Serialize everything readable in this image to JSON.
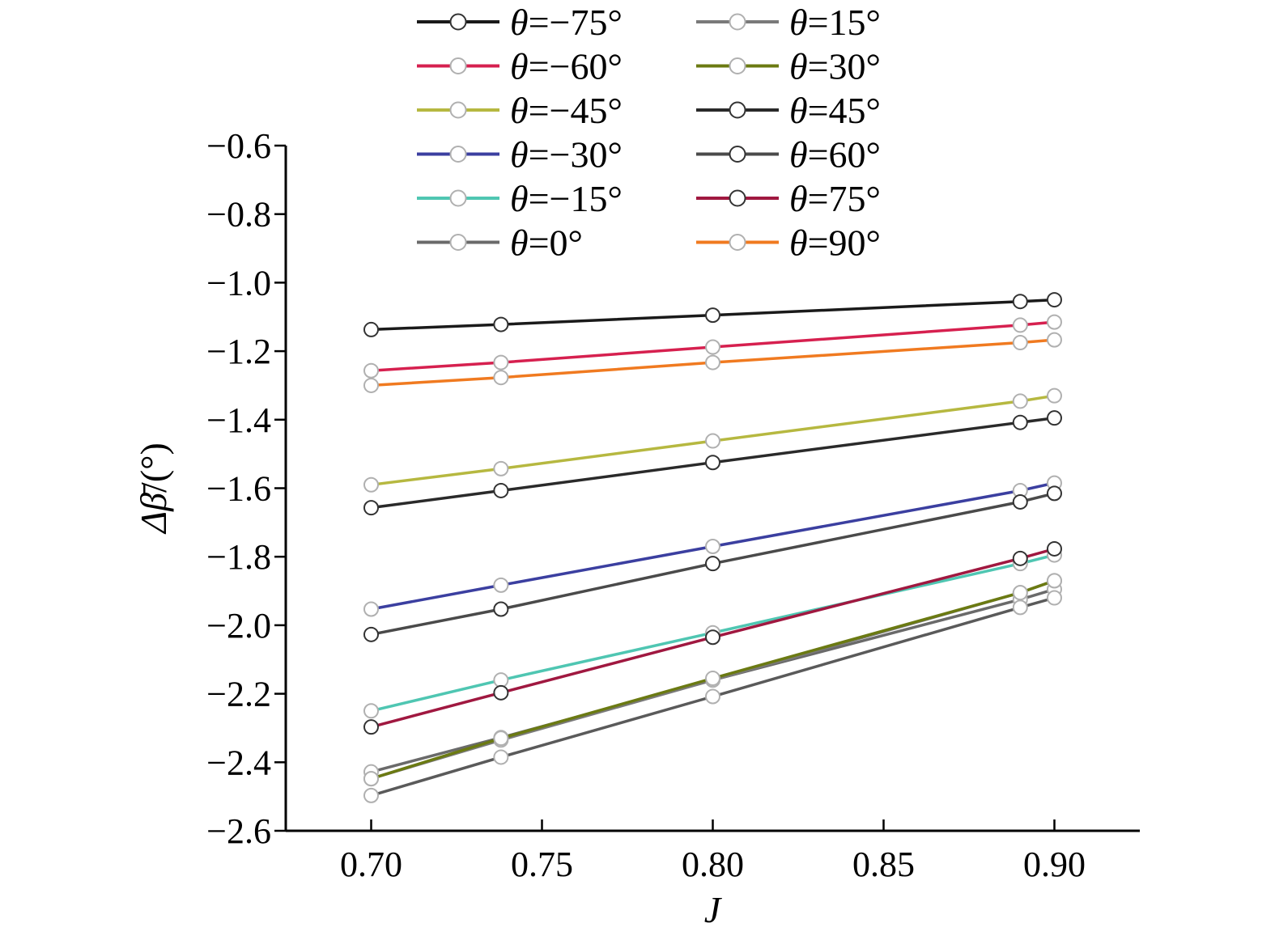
{
  "chart_data": {
    "type": "line",
    "xlabel": "J",
    "ylabel": "Δβ̄/(°)",
    "ylabel_main": "Δβ̄",
    "ylabel_unit": "/(°)",
    "xlim": [
      0.675,
      0.925
    ],
    "ylim": [
      -2.6,
      -0.6
    ],
    "xticks": [
      "0.70",
      "0.75",
      "0.80",
      "0.85",
      "0.90"
    ],
    "xtick_values": [
      0.7,
      0.75,
      0.8,
      0.85,
      0.9
    ],
    "yticks": [
      "−0.6",
      "−0.8",
      "−1.0",
      "−1.2",
      "−1.4",
      "−1.6",
      "−1.8",
      "−2.0",
      "−2.2",
      "−2.4",
      "−2.6"
    ],
    "ytick_values": [
      -0.6,
      -0.8,
      -1.0,
      -1.2,
      -1.4,
      -1.6,
      -1.8,
      -2.0,
      -2.2,
      -2.4,
      -2.6
    ],
    "x": [
      0.7,
      0.738,
      0.8,
      0.89,
      0.9
    ],
    "legend_position": "top",
    "grid": false,
    "series": [
      {
        "name": "θ=−75°",
        "theta": "θ",
        "value": "=−75°",
        "color": "#1a1a1a",
        "marker_edge": "#333333",
        "values": [
          -1.137,
          -1.122,
          -1.095,
          -1.055,
          -1.05
        ]
      },
      {
        "name": "θ=−60°",
        "theta": "θ",
        "value": "=−60°",
        "color": "#d6204f",
        "marker_edge": "#b0b0b0",
        "values": [
          -1.257,
          -1.233,
          -1.188,
          -1.124,
          -1.115
        ]
      },
      {
        "name": "θ=−45°",
        "theta": "θ",
        "value": "=−45°",
        "color": "#b6b840",
        "marker_edge": "#b0b0b0",
        "values": [
          -1.59,
          -1.543,
          -1.462,
          -1.346,
          -1.33
        ]
      },
      {
        "name": "θ=−30°",
        "theta": "θ",
        "value": "=−30°",
        "color": "#3b3fa0",
        "marker_edge": "#b0b0b0",
        "values": [
          -1.953,
          -1.883,
          -1.77,
          -1.607,
          -1.585
        ]
      },
      {
        "name": "θ=−15°",
        "theta": "θ",
        "value": "=−15°",
        "color": "#4fc6b2",
        "marker_edge": "#b0b0b0",
        "values": [
          -2.25,
          -2.16,
          -2.022,
          -1.82,
          -1.795
        ]
      },
      {
        "name": "θ=0°",
        "theta": "θ",
        "value": "=0°",
        "color": "#6a6a6a",
        "marker_edge": "#b0b0b0",
        "values": [
          -2.428,
          -2.328,
          -2.16,
          -1.925,
          -1.895
        ]
      },
      {
        "name": "θ=15°",
        "theta": "θ",
        "value": "=15°",
        "color": "#7a7a7a",
        "marker_edge": "#b0b0b0",
        "values": [
          -2.448,
          -2.335,
          -2.16,
          -1.905,
          -1.87
        ]
      },
      {
        "name": "θ=30°",
        "theta": "θ",
        "value": "=30°",
        "color": "#6b7a12",
        "marker_edge": "#b0b0b0",
        "values": [
          -2.448,
          -2.33,
          -2.155,
          -1.905,
          -1.87
        ]
      },
      {
        "name": "θ=45°",
        "theta": "θ",
        "value": "=45°",
        "color": "#2a2a2a",
        "marker_edge": "#333333",
        "values": [
          -1.657,
          -1.607,
          -1.525,
          -1.408,
          -1.395
        ]
      },
      {
        "name": "θ=60°",
        "theta": "θ",
        "value": "=60°",
        "color": "#4a4a4a",
        "marker_edge": "#333333",
        "values": [
          -2.027,
          -1.953,
          -1.82,
          -1.64,
          -1.615
        ]
      },
      {
        "name": "θ=75°",
        "theta": "θ",
        "value": "=75°",
        "color": "#a01840",
        "marker_edge": "#333333",
        "values": [
          -2.297,
          -2.197,
          -2.035,
          -1.805,
          -1.777
        ]
      },
      {
        "name": "θ=90°",
        "theta": "θ",
        "value": "=90°",
        "color": "#f07a20",
        "marker_edge": "#b0b0b0",
        "values": [
          -1.3,
          -1.277,
          -1.233,
          -1.175,
          -1.167
        ]
      },
      {
        "name": "",
        "theta": "",
        "value": "",
        "color": "#5a5a5a",
        "marker_edge": "#b0b0b0",
        "values": [
          -2.497,
          -2.385,
          -2.208,
          -1.948,
          -1.92
        ]
      }
    ]
  }
}
